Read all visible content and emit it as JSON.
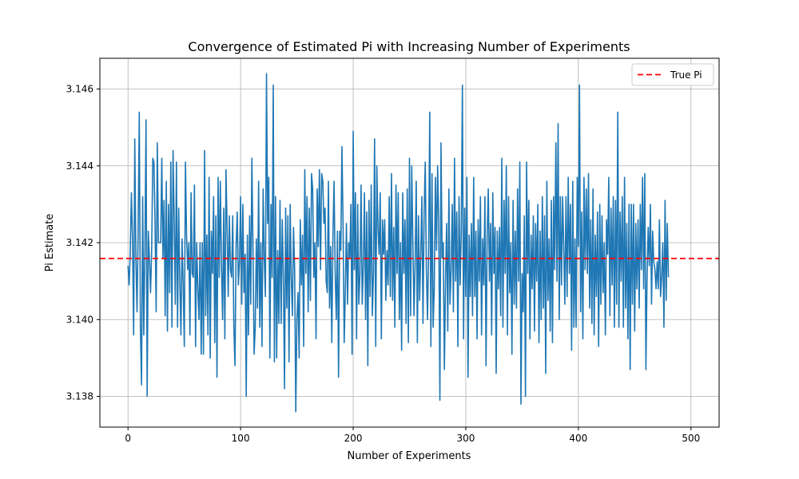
{
  "chart_data": {
    "type": "line",
    "title": "Convergence of Estimated Pi with Increasing Number of Experiments",
    "xlabel": "Number of Experiments",
    "ylabel": "Pi Estimate",
    "xlim": [
      -25,
      525
    ],
    "ylim": [
      3.1372,
      3.1468
    ],
    "xticks": [
      0,
      100,
      200,
      300,
      400,
      500
    ],
    "yticks": [
      3.138,
      3.14,
      3.142,
      3.144,
      3.146
    ],
    "xtick_labels": [
      "0",
      "100",
      "200",
      "300",
      "400",
      "500"
    ],
    "ytick_labels": [
      "3.138",
      "3.140",
      "3.142",
      "3.144",
      "3.146"
    ],
    "grid": true,
    "legend_position": "top-right",
    "reference_line": {
      "name": "True Pi",
      "value": 3.14159,
      "color": "#ff0000",
      "style": "dashed"
    },
    "series": [
      {
        "color": "#1f77b4",
        "x_start": 0,
        "x_step": 1,
        "values": [
          3.1414,
          3.1409,
          3.1418,
          3.1433,
          3.1421,
          3.1396,
          3.1447,
          3.1416,
          3.1402,
          3.1423,
          3.1454,
          3.1398,
          3.1383,
          3.1432,
          3.1396,
          3.1418,
          3.1452,
          3.138,
          3.1423,
          3.1416,
          3.1407,
          3.1418,
          3.1442,
          3.1441,
          3.1425,
          3.1402,
          3.1446,
          3.142,
          3.142,
          3.142,
          3.1442,
          3.1416,
          3.1431,
          3.1401,
          3.1436,
          3.1397,
          3.143,
          3.1407,
          3.1441,
          3.1398,
          3.1444,
          3.1426,
          3.1404,
          3.1441,
          3.1398,
          3.1429,
          3.141,
          3.1396,
          3.1421,
          3.1409,
          3.1393,
          3.1441,
          3.1422,
          3.1413,
          3.142,
          3.1396,
          3.1433,
          3.1412,
          3.1411,
          3.1435,
          3.1393,
          3.142,
          3.1408,
          3.14,
          3.142,
          3.1391,
          3.142,
          3.1391,
          3.1444,
          3.1401,
          3.1422,
          3.1396,
          3.1437,
          3.139,
          3.1423,
          3.1412,
          3.1432,
          3.1394,
          3.1427,
          3.1385,
          3.1437,
          3.1411,
          3.1436,
          3.1414,
          3.14,
          3.1429,
          3.1395,
          3.1439,
          3.1424,
          3.1406,
          3.1427,
          3.1413,
          3.1411,
          3.1427,
          3.1398,
          3.1388,
          3.1419,
          3.1428,
          3.1409,
          3.1415,
          3.1432,
          3.1404,
          3.143,
          3.1407,
          3.1417,
          3.138,
          3.1422,
          3.1396,
          3.1427,
          3.1404,
          3.1442,
          3.1418,
          3.1391,
          3.1398,
          3.1421,
          3.1403,
          3.1436,
          3.1398,
          3.142,
          3.1393,
          3.1434,
          3.1416,
          3.1406,
          3.1464,
          3.1425,
          3.1437,
          3.139,
          3.143,
          3.1411,
          3.1461,
          3.1389,
          3.1432,
          3.139,
          3.1418,
          3.1399,
          3.1431,
          3.1399,
          3.1426,
          3.1411,
          3.1382,
          3.1429,
          3.1403,
          3.1427,
          3.1389,
          3.143,
          3.1411,
          3.1401,
          3.1424,
          3.1413,
          3.1376,
          3.14,
          3.1407,
          3.139,
          3.1426,
          3.1409,
          3.1422,
          3.1393,
          3.1439,
          3.1412,
          3.1432,
          3.1402,
          3.1429,
          3.1405,
          3.1438,
          3.1434,
          3.1411,
          3.142,
          3.1395,
          3.1434,
          3.1419,
          3.1439,
          3.1413,
          3.1438,
          3.1436,
          3.1425,
          3.1429,
          3.141,
          3.1407,
          3.1436,
          3.1403,
          3.1419,
          3.1394,
          3.1422,
          3.1436,
          3.1412,
          3.14,
          3.1423,
          3.1385,
          3.1423,
          3.1418,
          3.1445,
          3.1425,
          3.1394,
          3.1407,
          3.1425,
          3.1404,
          3.142,
          3.1416,
          3.143,
          3.1391,
          3.1449,
          3.1413,
          3.1433,
          3.1395,
          3.143,
          3.1404,
          3.1412,
          3.1435,
          3.1404,
          3.1414,
          3.1433,
          3.14,
          3.1428,
          3.1388,
          3.1431,
          3.1406,
          3.1435,
          3.1401,
          3.1412,
          3.1447,
          3.1393,
          3.144,
          3.1424,
          3.1417,
          3.1433,
          3.1395,
          3.1426,
          3.1417,
          3.1426,
          3.1405,
          3.1418,
          3.1409,
          3.1432,
          3.1406,
          3.1438,
          3.1405,
          3.1424,
          3.1398,
          3.1435,
          3.1412,
          3.1433,
          3.14,
          3.142,
          3.1392,
          3.1433,
          3.1412,
          3.1426,
          3.1399,
          3.1434,
          3.1394,
          3.1442,
          3.1401,
          3.144,
          3.142,
          3.1401,
          3.1415,
          3.1436,
          3.1394,
          3.1427,
          3.1405,
          3.1417,
          3.1432,
          3.1399,
          3.1428,
          3.1441,
          3.1413,
          3.14,
          3.1418,
          3.1454,
          3.1393,
          3.1438,
          3.1398,
          3.1408,
          3.1437,
          3.1418,
          3.144,
          3.1425,
          3.1379,
          3.1446,
          3.1416,
          3.142,
          3.1387,
          3.141,
          3.1425,
          3.1397,
          3.1434,
          3.1404,
          3.1413,
          3.143,
          3.1402,
          3.1442,
          3.141,
          3.1428,
          3.1393,
          3.1432,
          3.1409,
          3.1423,
          3.1461,
          3.1395,
          3.1429,
          3.1406,
          3.1437,
          3.1385,
          3.1422,
          3.1406,
          3.1425,
          3.1401,
          3.1437,
          3.1406,
          3.1423,
          3.1395,
          3.1426,
          3.141,
          3.1432,
          3.1396,
          3.1421,
          3.1409,
          3.1432,
          3.1388,
          3.1422,
          3.1434,
          3.141,
          3.1425,
          3.1396,
          3.1433,
          3.1412,
          3.1424,
          3.1386,
          3.1423,
          3.1408,
          3.1424,
          3.1401,
          3.1442,
          3.1398,
          3.1431,
          3.1412,
          3.144,
          3.1396,
          3.1432,
          3.1407,
          3.142,
          3.1391,
          3.1431,
          3.1404,
          3.1423,
          3.1403,
          3.1434,
          3.141,
          3.1441,
          3.1378,
          3.1412,
          3.1402,
          3.1427,
          3.138,
          3.1441,
          3.1412,
          3.1431,
          3.1395,
          3.1422,
          3.1408,
          3.1427,
          3.1397,
          3.1425,
          3.141,
          3.143,
          3.1394,
          3.1423,
          3.14,
          3.1432,
          3.1403,
          3.1427,
          3.1386,
          3.1436,
          3.1405,
          3.1421,
          3.1397,
          3.1431,
          3.1394,
          3.1432,
          3.1413,
          3.1446,
          3.141,
          3.1451,
          3.14,
          3.1432,
          3.1409,
          3.1432,
          3.1419,
          3.1404,
          3.1432,
          3.1406,
          3.1437,
          3.1412,
          3.143,
          3.1392,
          3.1436,
          3.1398,
          3.1421,
          3.1398,
          3.1437,
          3.1419,
          3.1461,
          3.1402,
          3.1428,
          3.1395,
          3.1437,
          3.1413,
          3.1434,
          3.1412,
          3.1438,
          3.1403,
          3.1426,
          3.1399,
          3.1434,
          3.1396,
          3.1422,
          3.1406,
          3.1428,
          3.1393,
          3.143,
          3.1404,
          3.1427,
          3.1407,
          3.142,
          3.1396,
          3.1426,
          3.1417,
          3.1437,
          3.1401,
          3.1429,
          3.1409,
          3.1432,
          3.1398,
          3.1431,
          3.1404,
          3.1454,
          3.1398,
          3.1428,
          3.141,
          3.1432,
          3.1398,
          3.1437,
          3.1403,
          3.1425,
          3.1395,
          3.143,
          3.1387,
          3.143,
          3.1404,
          3.143,
          3.1397,
          3.1425,
          3.1408,
          3.1426,
          3.1403,
          3.143,
          3.1413,
          3.1437,
          3.1408,
          3.1438,
          3.1387,
          3.1411,
          3.1424,
          3.1414,
          3.143,
          3.1404,
          3.1423,
          3.1415,
          3.1413,
          3.1408,
          3.1415,
          3.1408,
          3.1426,
          3.1406,
          3.1411,
          3.142,
          3.1398,
          3.1431,
          3.1405,
          3.1425,
          3.1411
        ]
      }
    ]
  }
}
